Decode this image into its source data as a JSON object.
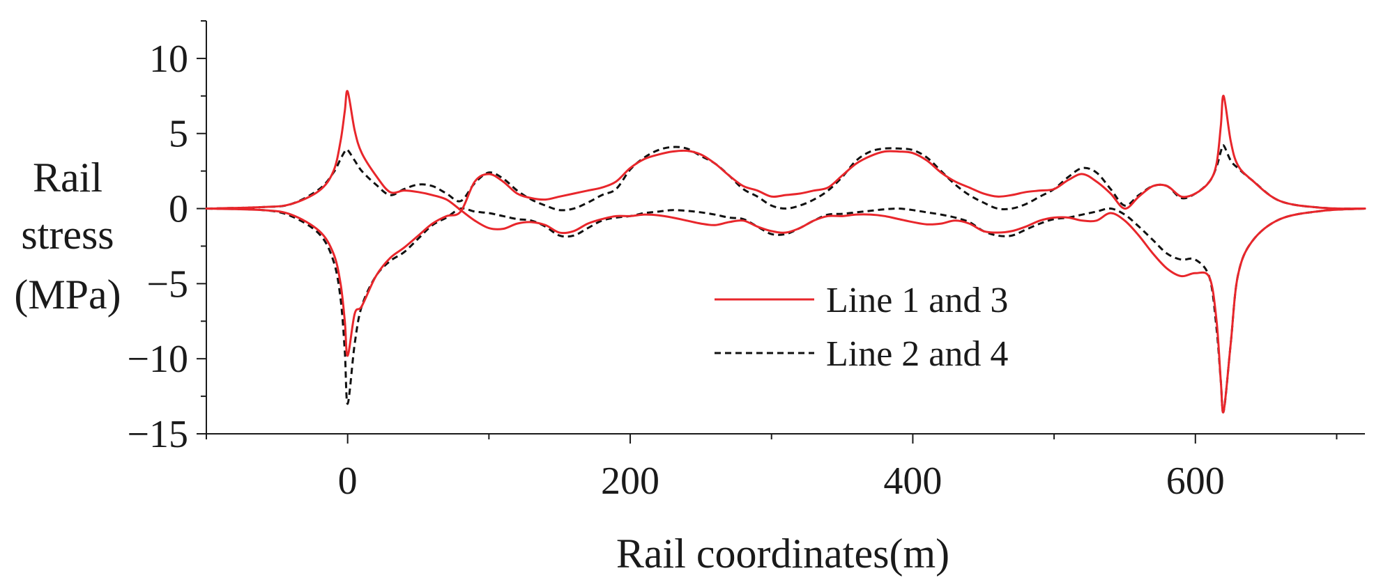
{
  "chart_data": {
    "type": "line",
    "title": "",
    "xlabel": "Rail coordinates(m)",
    "ylabel_lines": [
      "Rail",
      "stress",
      "(MPa)"
    ],
    "xlim": [
      -100,
      720
    ],
    "ylim": [
      -15,
      12.5
    ],
    "xticks": [
      0,
      200,
      400,
      600
    ],
    "xtick_labels": [
      "0",
      "200",
      "400",
      "600"
    ],
    "yticks": [
      10,
      5,
      0,
      -5,
      -10,
      -15
    ],
    "ytick_labels": [
      "10",
      "5",
      "0",
      "−5",
      "−10",
      "−15"
    ],
    "grid": false,
    "legend_position": "center-right",
    "series": [
      {
        "name": "Line 1 and 3",
        "color": "#e8262b",
        "dash": "solid",
        "curves": [
          {
            "x": [
              -100,
              -60,
              -40,
              -20,
              -10,
              -5,
              -2,
              0,
              5,
              10,
              20,
              30,
              40,
              50,
              60,
              70,
              80,
              90,
              100,
              110,
              120,
              130,
              140,
              150,
              160,
              170,
              180,
              190,
              200,
              210,
              220,
              230,
              240,
              250,
              260,
              270,
              280,
              290,
              300,
              310,
              320,
              330,
              340,
              350,
              360,
              370,
              380,
              390,
              400,
              410,
              420,
              430,
              440,
              450,
              460,
              470,
              480,
              490,
              500,
              510,
              520,
              530,
              540,
              550,
              560,
              570,
              580,
              590,
              600,
              610,
              615,
              618,
              620,
              625,
              630,
              640,
              660,
              690,
              720
            ],
            "y": [
              0,
              0.1,
              0.3,
              1.2,
              2.5,
              4.5,
              6.5,
              7.8,
              5.2,
              3.7,
              2.2,
              1.1,
              1.2,
              1.1,
              0.9,
              0.6,
              -0.1,
              -0.8,
              -1.3,
              -1.35,
              -1.0,
              -0.9,
              -1.1,
              -1.6,
              -1.5,
              -1.0,
              -0.7,
              -0.5,
              -0.5,
              -0.4,
              -0.45,
              -0.6,
              -0.8,
              -1.0,
              -1.1,
              -0.9,
              -0.8,
              -1.2,
              -1.5,
              -1.6,
              -1.3,
              -0.8,
              -0.5,
              -0.5,
              -0.4,
              -0.4,
              -0.5,
              -0.7,
              -0.9,
              -1.05,
              -1.0,
              -0.8,
              -1.0,
              -1.5,
              -1.6,
              -1.5,
              -1.2,
              -0.8,
              -0.6,
              -0.6,
              -0.8,
              -0.8,
              -0.3,
              -0.8,
              -1.8,
              -3.0,
              -4.0,
              -4.5,
              -4.3,
              -4.6,
              -7.5,
              -11.5,
              -13.5,
              -9.0,
              -4.5,
              -2.2,
              -0.7,
              -0.15,
              0
            ]
          },
          {
            "x": [
              -100,
              -60,
              -40,
              -20,
              -10,
              -5,
              -2,
              0,
              5,
              10,
              20,
              30,
              40,
              50,
              60,
              70,
              80,
              90,
              100,
              110,
              120,
              130,
              140,
              150,
              160,
              170,
              180,
              190,
              200,
              210,
              220,
              230,
              240,
              250,
              260,
              270,
              280,
              290,
              300,
              310,
              320,
              330,
              340,
              350,
              360,
              370,
              380,
              390,
              400,
              410,
              420,
              430,
              440,
              450,
              460,
              470,
              480,
              490,
              500,
              510,
              520,
              530,
              540,
              550,
              560,
              570,
              580,
              590,
              600,
              610,
              615,
              618,
              620,
              625,
              630,
              640,
              660,
              690,
              720
            ],
            "y": [
              0,
              -0.1,
              -0.4,
              -1.5,
              -3.0,
              -5.0,
              -7.5,
              -9.8,
              -7.0,
              -6.5,
              -4.5,
              -3.3,
              -2.6,
              -1.8,
              -1.0,
              -0.5,
              -0.2,
              1.8,
              2.3,
              1.8,
              1.0,
              0.7,
              0.6,
              0.8,
              1.0,
              1.2,
              1.4,
              1.8,
              2.7,
              3.3,
              3.6,
              3.8,
              3.85,
              3.6,
              3.0,
              2.2,
              1.5,
              1.2,
              0.8,
              0.9,
              1.0,
              1.2,
              1.4,
              2.2,
              3.0,
              3.5,
              3.8,
              3.8,
              3.7,
              3.2,
              2.4,
              1.8,
              1.4,
              1.0,
              0.8,
              0.9,
              1.1,
              1.2,
              1.3,
              1.9,
              2.3,
              1.8,
              1.0,
              0.0,
              0.8,
              1.5,
              1.5,
              0.8,
              1.0,
              1.8,
              3.0,
              5.5,
              7.5,
              4.5,
              2.9,
              1.9,
              0.5,
              0.05,
              0
            ]
          }
        ]
      },
      {
        "name": "Line 2 and 4",
        "color": "#111111",
        "dash": "dashed",
        "curves": [
          {
            "x": [
              -100,
              -60,
              -40,
              -20,
              -10,
              -5,
              -2,
              0,
              5,
              10,
              20,
              30,
              40,
              50,
              60,
              70,
              80,
              90,
              100,
              110,
              120,
              130,
              140,
              150,
              160,
              170,
              180,
              190,
              200,
              210,
              220,
              230,
              240,
              250,
              260,
              270,
              280,
              290,
              300,
              310,
              320,
              330,
              340,
              350,
              360,
              370,
              380,
              390,
              400,
              410,
              420,
              430,
              440,
              450,
              460,
              470,
              480,
              490,
              500,
              510,
              520,
              530,
              540,
              550,
              560,
              570,
              580,
              590,
              600,
              610,
              615,
              618,
              620,
              625,
              630,
              640,
              660,
              690,
              720
            ],
            "y": [
              0,
              0.1,
              0.3,
              1.3,
              2.4,
              3.3,
              3.8,
              3.9,
              3.2,
              2.5,
              1.6,
              0.9,
              1.3,
              1.6,
              1.5,
              1.0,
              0.5,
              1.7,
              2.4,
              2.0,
              1.2,
              0.6,
              0.2,
              -0.1,
              0.0,
              0.4,
              0.9,
              1.3,
              2.6,
              3.4,
              3.9,
              4.1,
              4.0,
              3.5,
              3.0,
              2.2,
              1.3,
              0.8,
              0.2,
              0.0,
              0.2,
              0.6,
              1.2,
              2.1,
              3.2,
              3.8,
              4.0,
              4.0,
              3.9,
              3.4,
              2.5,
              1.6,
              0.9,
              0.4,
              0.0,
              0.0,
              0.3,
              0.8,
              1.3,
              2.1,
              2.7,
              2.4,
              1.3,
              0.2,
              0.9,
              1.5,
              1.5,
              0.7,
              1.0,
              1.8,
              2.8,
              3.8,
              4.2,
              3.2,
              2.7,
              1.9,
              0.5,
              0.05,
              0
            ]
          },
          {
            "x": [
              -100,
              -60,
              -40,
              -20,
              -10,
              -5,
              -2,
              0,
              5,
              10,
              20,
              30,
              40,
              50,
              60,
              70,
              80,
              90,
              100,
              110,
              120,
              130,
              140,
              150,
              160,
              170,
              180,
              190,
              200,
              210,
              220,
              230,
              240,
              250,
              260,
              270,
              280,
              290,
              300,
              310,
              320,
              330,
              340,
              350,
              360,
              370,
              380,
              390,
              400,
              410,
              420,
              430,
              440,
              450,
              460,
              470,
              480,
              490,
              500,
              510,
              520,
              530,
              540,
              550,
              560,
              570,
              580,
              590,
              600,
              610,
              615,
              618,
              620,
              625,
              630,
              640,
              660,
              690,
              720
            ],
            "y": [
              0,
              -0.1,
              -0.5,
              -1.7,
              -3.5,
              -6.0,
              -9.5,
              -13.0,
              -9.0,
              -6.5,
              -4.5,
              -3.5,
              -2.9,
              -2.0,
              -1.1,
              -0.6,
              0.0,
              -0.2,
              -0.3,
              -0.5,
              -0.7,
              -0.8,
              -1.2,
              -1.8,
              -1.8,
              -1.3,
              -0.8,
              -0.6,
              -0.5,
              -0.3,
              -0.2,
              -0.1,
              -0.15,
              -0.25,
              -0.4,
              -0.6,
              -0.7,
              -1.2,
              -1.7,
              -1.7,
              -1.3,
              -0.8,
              -0.4,
              -0.35,
              -0.25,
              -0.15,
              -0.05,
              0.0,
              -0.1,
              -0.25,
              -0.4,
              -0.6,
              -0.9,
              -1.5,
              -1.8,
              -1.8,
              -1.4,
              -1.0,
              -0.7,
              -0.6,
              -0.4,
              -0.2,
              0.0,
              -0.4,
              -1.2,
              -2.1,
              -3.0,
              -3.4,
              -3.4,
              -4.6,
              -8.0,
              -11.5,
              -13.5,
              -9.0,
              -4.5,
              -2.2,
              -0.7,
              -0.15,
              0
            ]
          }
        ]
      }
    ]
  }
}
